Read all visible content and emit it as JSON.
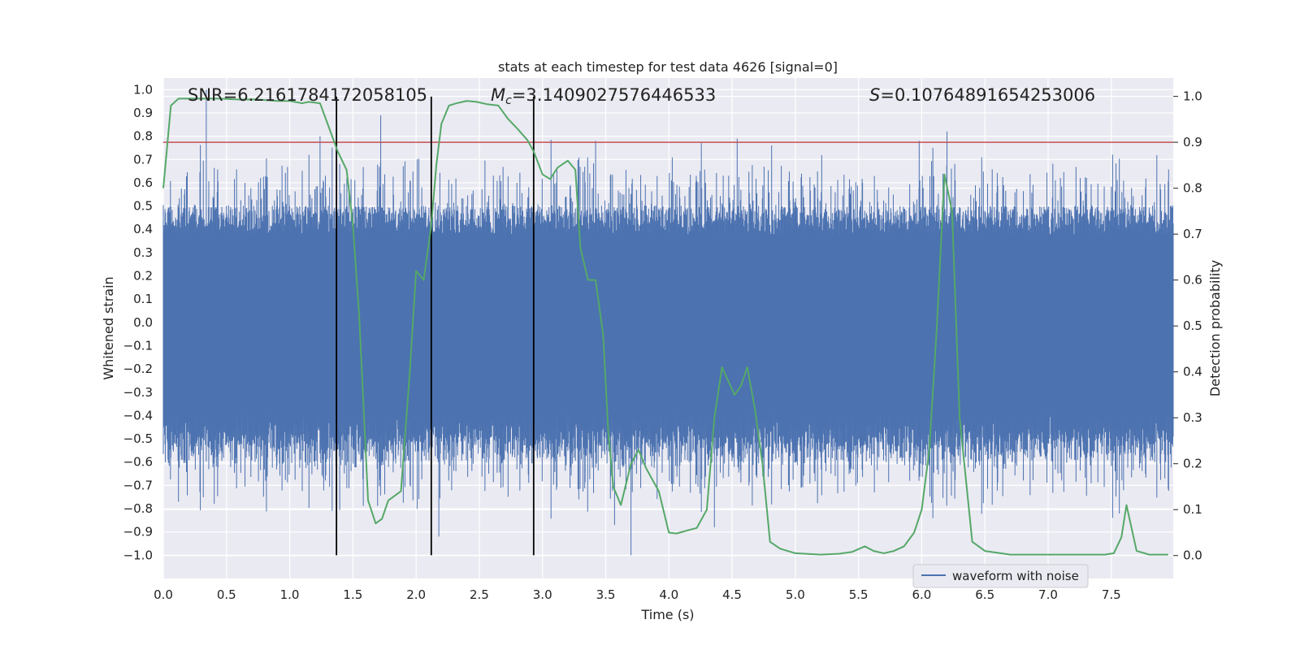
{
  "chart_data": {
    "type": "line",
    "title": "stats at each timestep for test data 4626 [signal=0]",
    "xlabel": "Time (s)",
    "ylabel": "Whitened strain",
    "y2label": "Detection probability",
    "xlim": [
      0.0,
      7.99
    ],
    "ylim": [
      -1.1,
      1.05
    ],
    "y2lim": [
      -0.05,
      1.04
    ],
    "xticks": [
      0.0,
      0.5,
      1.0,
      1.5,
      2.0,
      2.5,
      3.0,
      3.5,
      4.0,
      4.5,
      5.0,
      5.5,
      6.0,
      6.5,
      7.0,
      7.5
    ],
    "xtick_labels": [
      "0.0",
      "0.5",
      "1.0",
      "1.5",
      "2.0",
      "2.5",
      "3.0",
      "3.5",
      "4.0",
      "4.5",
      "5.0",
      "5.5",
      "6.0",
      "6.5",
      "7.0",
      "7.5"
    ],
    "yticks": [
      1.0,
      0.9,
      0.8,
      0.7,
      0.6,
      0.5,
      0.4,
      0.3,
      0.2,
      0.1,
      0.0,
      -0.1,
      -0.2,
      -0.3,
      -0.4,
      -0.5,
      -0.6,
      -0.7,
      -0.8,
      -0.9,
      -1.0
    ],
    "ytick_labels": [
      "1.0",
      "0.9",
      "0.8",
      "0.7",
      "0.6",
      "0.5",
      "0.4",
      "0.3",
      "0.2",
      "0.1",
      "0.0",
      "−0.1",
      "−0.2",
      "−0.3",
      "−0.4",
      "−0.5",
      "−0.6",
      "−0.7",
      "−0.8",
      "−0.9",
      "−1.0"
    ],
    "y2ticks": [
      1.0,
      0.9,
      0.8,
      0.7,
      0.6,
      0.5,
      0.4,
      0.3,
      0.2,
      0.1,
      0.0
    ],
    "y2tick_labels": [
      "1.0",
      "0.9",
      "0.8",
      "0.7",
      "0.6",
      "0.5",
      "0.4",
      "0.3",
      "0.2",
      "0.1",
      "0.0"
    ],
    "annotations": {
      "snr": "SNR=6.2161784172058105",
      "mc_symbol": "M",
      "mc_sub": "c",
      "mc_value": "=3.1409027576446533",
      "s_symbol": "S",
      "s_value": "=0.10764891654253006"
    },
    "legend": {
      "label": "waveform with noise",
      "position": "lower-right"
    },
    "threshold": {
      "value": 0.9,
      "axis": "y2",
      "color": "#c44e52"
    },
    "vertical_lines": [
      {
        "x": 1.37,
        "y_from": -1.0,
        "y_to": 0.97
      },
      {
        "x": 2.12,
        "y_from": -1.0,
        "y_to": 0.97
      },
      {
        "x": 2.93,
        "y_from": -1.0,
        "y_to": 0.97
      }
    ],
    "waveform": {
      "name": "waveform with noise",
      "color": "#4c72b0",
      "amplitude_core": 0.42,
      "max": 1.0,
      "min": -1.0,
      "spikes": [
        {
          "x": 0.34,
          "y": 1.0
        },
        {
          "x": 1.24,
          "y": 0.8
        },
        {
          "x": 1.72,
          "y": 0.89
        },
        {
          "x": 3.42,
          "y": 0.78
        },
        {
          "x": 4.54,
          "y": 0.79
        },
        {
          "x": 5.98,
          "y": 0.78
        },
        {
          "x": 6.2,
          "y": 0.82
        },
        {
          "x": 3.7,
          "y": -1.0
        },
        {
          "x": 2.18,
          "y": -0.92
        },
        {
          "x": 3.57,
          "y": -0.87
        },
        {
          "x": 4.36,
          "y": -0.88
        },
        {
          "x": 0.12,
          "y": -0.77
        }
      ]
    },
    "series": [
      {
        "name": "detection probability",
        "axis": "y2",
        "color": "#55a868",
        "x": [
          0.0,
          0.06,
          0.12,
          0.2,
          0.3,
          0.45,
          0.6,
          0.75,
          0.9,
          1.0,
          1.1,
          1.15,
          1.24,
          1.3,
          1.38,
          1.45,
          1.5,
          1.55,
          1.62,
          1.68,
          1.73,
          1.78,
          1.88,
          1.95,
          2.0,
          2.06,
          2.12,
          2.16,
          2.2,
          2.26,
          2.32,
          2.4,
          2.48,
          2.56,
          2.65,
          2.73,
          2.8,
          2.88,
          2.93,
          3.0,
          3.06,
          3.12,
          3.2,
          3.26,
          3.3,
          3.36,
          3.42,
          3.48,
          3.52,
          3.56,
          3.62,
          3.7,
          3.76,
          3.82,
          3.92,
          4.0,
          4.06,
          4.15,
          4.22,
          4.3,
          4.36,
          4.42,
          4.47,
          4.52,
          4.57,
          4.62,
          4.68,
          4.74,
          4.8,
          4.88,
          5.0,
          5.2,
          5.35,
          5.45,
          5.55,
          5.62,
          5.7,
          5.78,
          5.86,
          5.94,
          6.0,
          6.06,
          6.12,
          6.18,
          6.24,
          6.3,
          6.4,
          6.5,
          6.7,
          7.0,
          7.2,
          7.45,
          7.52,
          7.58,
          7.62,
          7.7,
          7.8,
          7.95
        ],
        "y": [
          0.8,
          0.98,
          0.995,
          0.995,
          0.995,
          0.995,
          0.993,
          0.993,
          0.99,
          0.99,
          0.985,
          0.988,
          0.985,
          0.94,
          0.88,
          0.84,
          0.72,
          0.52,
          0.12,
          0.07,
          0.08,
          0.12,
          0.14,
          0.4,
          0.62,
          0.6,
          0.72,
          0.85,
          0.94,
          0.98,
          0.985,
          0.99,
          0.988,
          0.983,
          0.98,
          0.95,
          0.93,
          0.905,
          0.88,
          0.83,
          0.82,
          0.845,
          0.86,
          0.84,
          0.67,
          0.6,
          0.6,
          0.48,
          0.27,
          0.15,
          0.11,
          0.2,
          0.23,
          0.19,
          0.14,
          0.05,
          0.048,
          0.055,
          0.06,
          0.1,
          0.3,
          0.41,
          0.38,
          0.35,
          0.37,
          0.41,
          0.32,
          0.2,
          0.03,
          0.015,
          0.005,
          0.002,
          0.004,
          0.008,
          0.02,
          0.01,
          0.005,
          0.01,
          0.02,
          0.05,
          0.1,
          0.23,
          0.5,
          0.83,
          0.75,
          0.3,
          0.03,
          0.01,
          0.002,
          0.002,
          0.002,
          0.002,
          0.005,
          0.04,
          0.11,
          0.01,
          0.002,
          0.002
        ]
      }
    ]
  }
}
